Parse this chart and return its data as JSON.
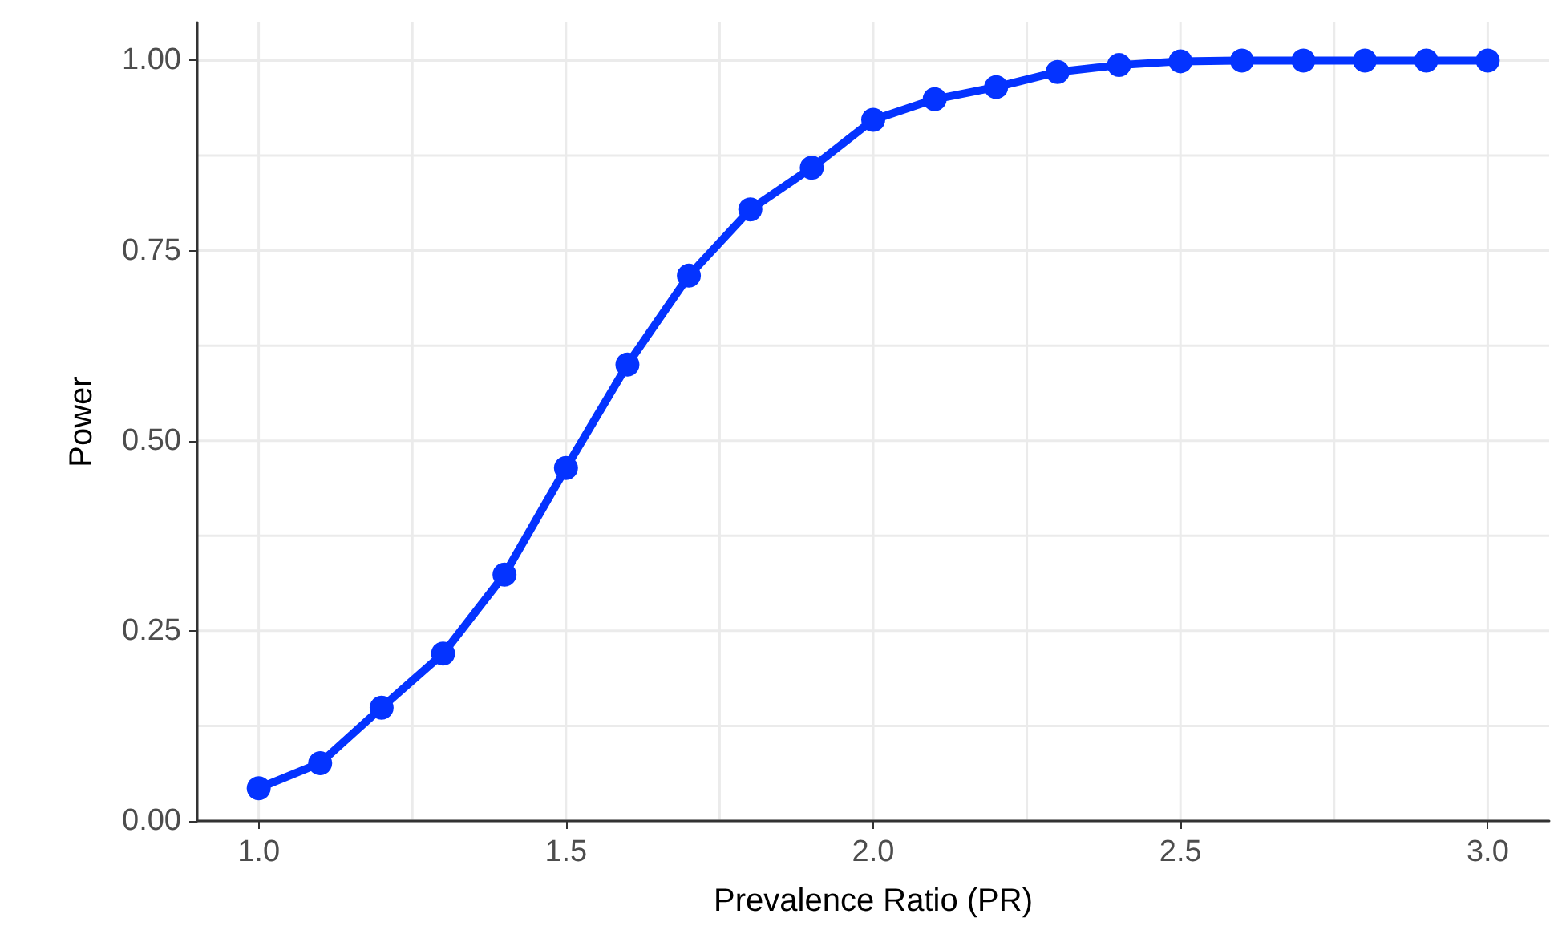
{
  "chart_data": {
    "type": "line",
    "xlabel": "Prevalence Ratio (PR)",
    "ylabel": "Power",
    "x": [
      1.0,
      1.1,
      1.2,
      1.3,
      1.4,
      1.5,
      1.6,
      1.7,
      1.8,
      1.9,
      2.0,
      2.1,
      2.2,
      2.3,
      2.4,
      2.5,
      2.6,
      2.7,
      2.8,
      2.9,
      3.0
    ],
    "series": [
      {
        "color": "#0433ff",
        "values": [
          0.043,
          0.076,
          0.149,
          0.22,
          0.324,
          0.464,
          0.6,
          0.717,
          0.804,
          0.859,
          0.922,
          0.949,
          0.965,
          0.985,
          0.994,
          0.999,
          1.0,
          1.0,
          1.0,
          1.0,
          1.0
        ]
      }
    ],
    "xlim": [
      0.9,
      3.1
    ],
    "xticks": [
      {
        "value": 1.0,
        "label": "1.0"
      },
      {
        "value": 1.25,
        "label": null
      },
      {
        "value": 1.5,
        "label": "1.5"
      },
      {
        "value": 1.75,
        "label": null
      },
      {
        "value": 2.0,
        "label": "2.0"
      },
      {
        "value": 2.25,
        "label": null
      },
      {
        "value": 2.5,
        "label": "2.5"
      },
      {
        "value": 2.75,
        "label": null
      },
      {
        "value": 3.0,
        "label": "3.0"
      }
    ],
    "ylim": [
      0,
      1.05
    ],
    "yticks": [
      {
        "value": 0,
        "label": "0.00"
      },
      {
        "value": 0.125,
        "label": null
      },
      {
        "value": 0.25,
        "label": "0.25"
      },
      {
        "value": 0.375,
        "label": null
      },
      {
        "value": 0.5,
        "label": "0.50"
      },
      {
        "value": 0.625,
        "label": null
      },
      {
        "value": 0.75,
        "label": "0.75"
      },
      {
        "value": 0.875,
        "label": null
      },
      {
        "value": 1.0,
        "label": "1.00"
      }
    ],
    "grid": true,
    "marker": "circle",
    "line_style": "solid"
  }
}
